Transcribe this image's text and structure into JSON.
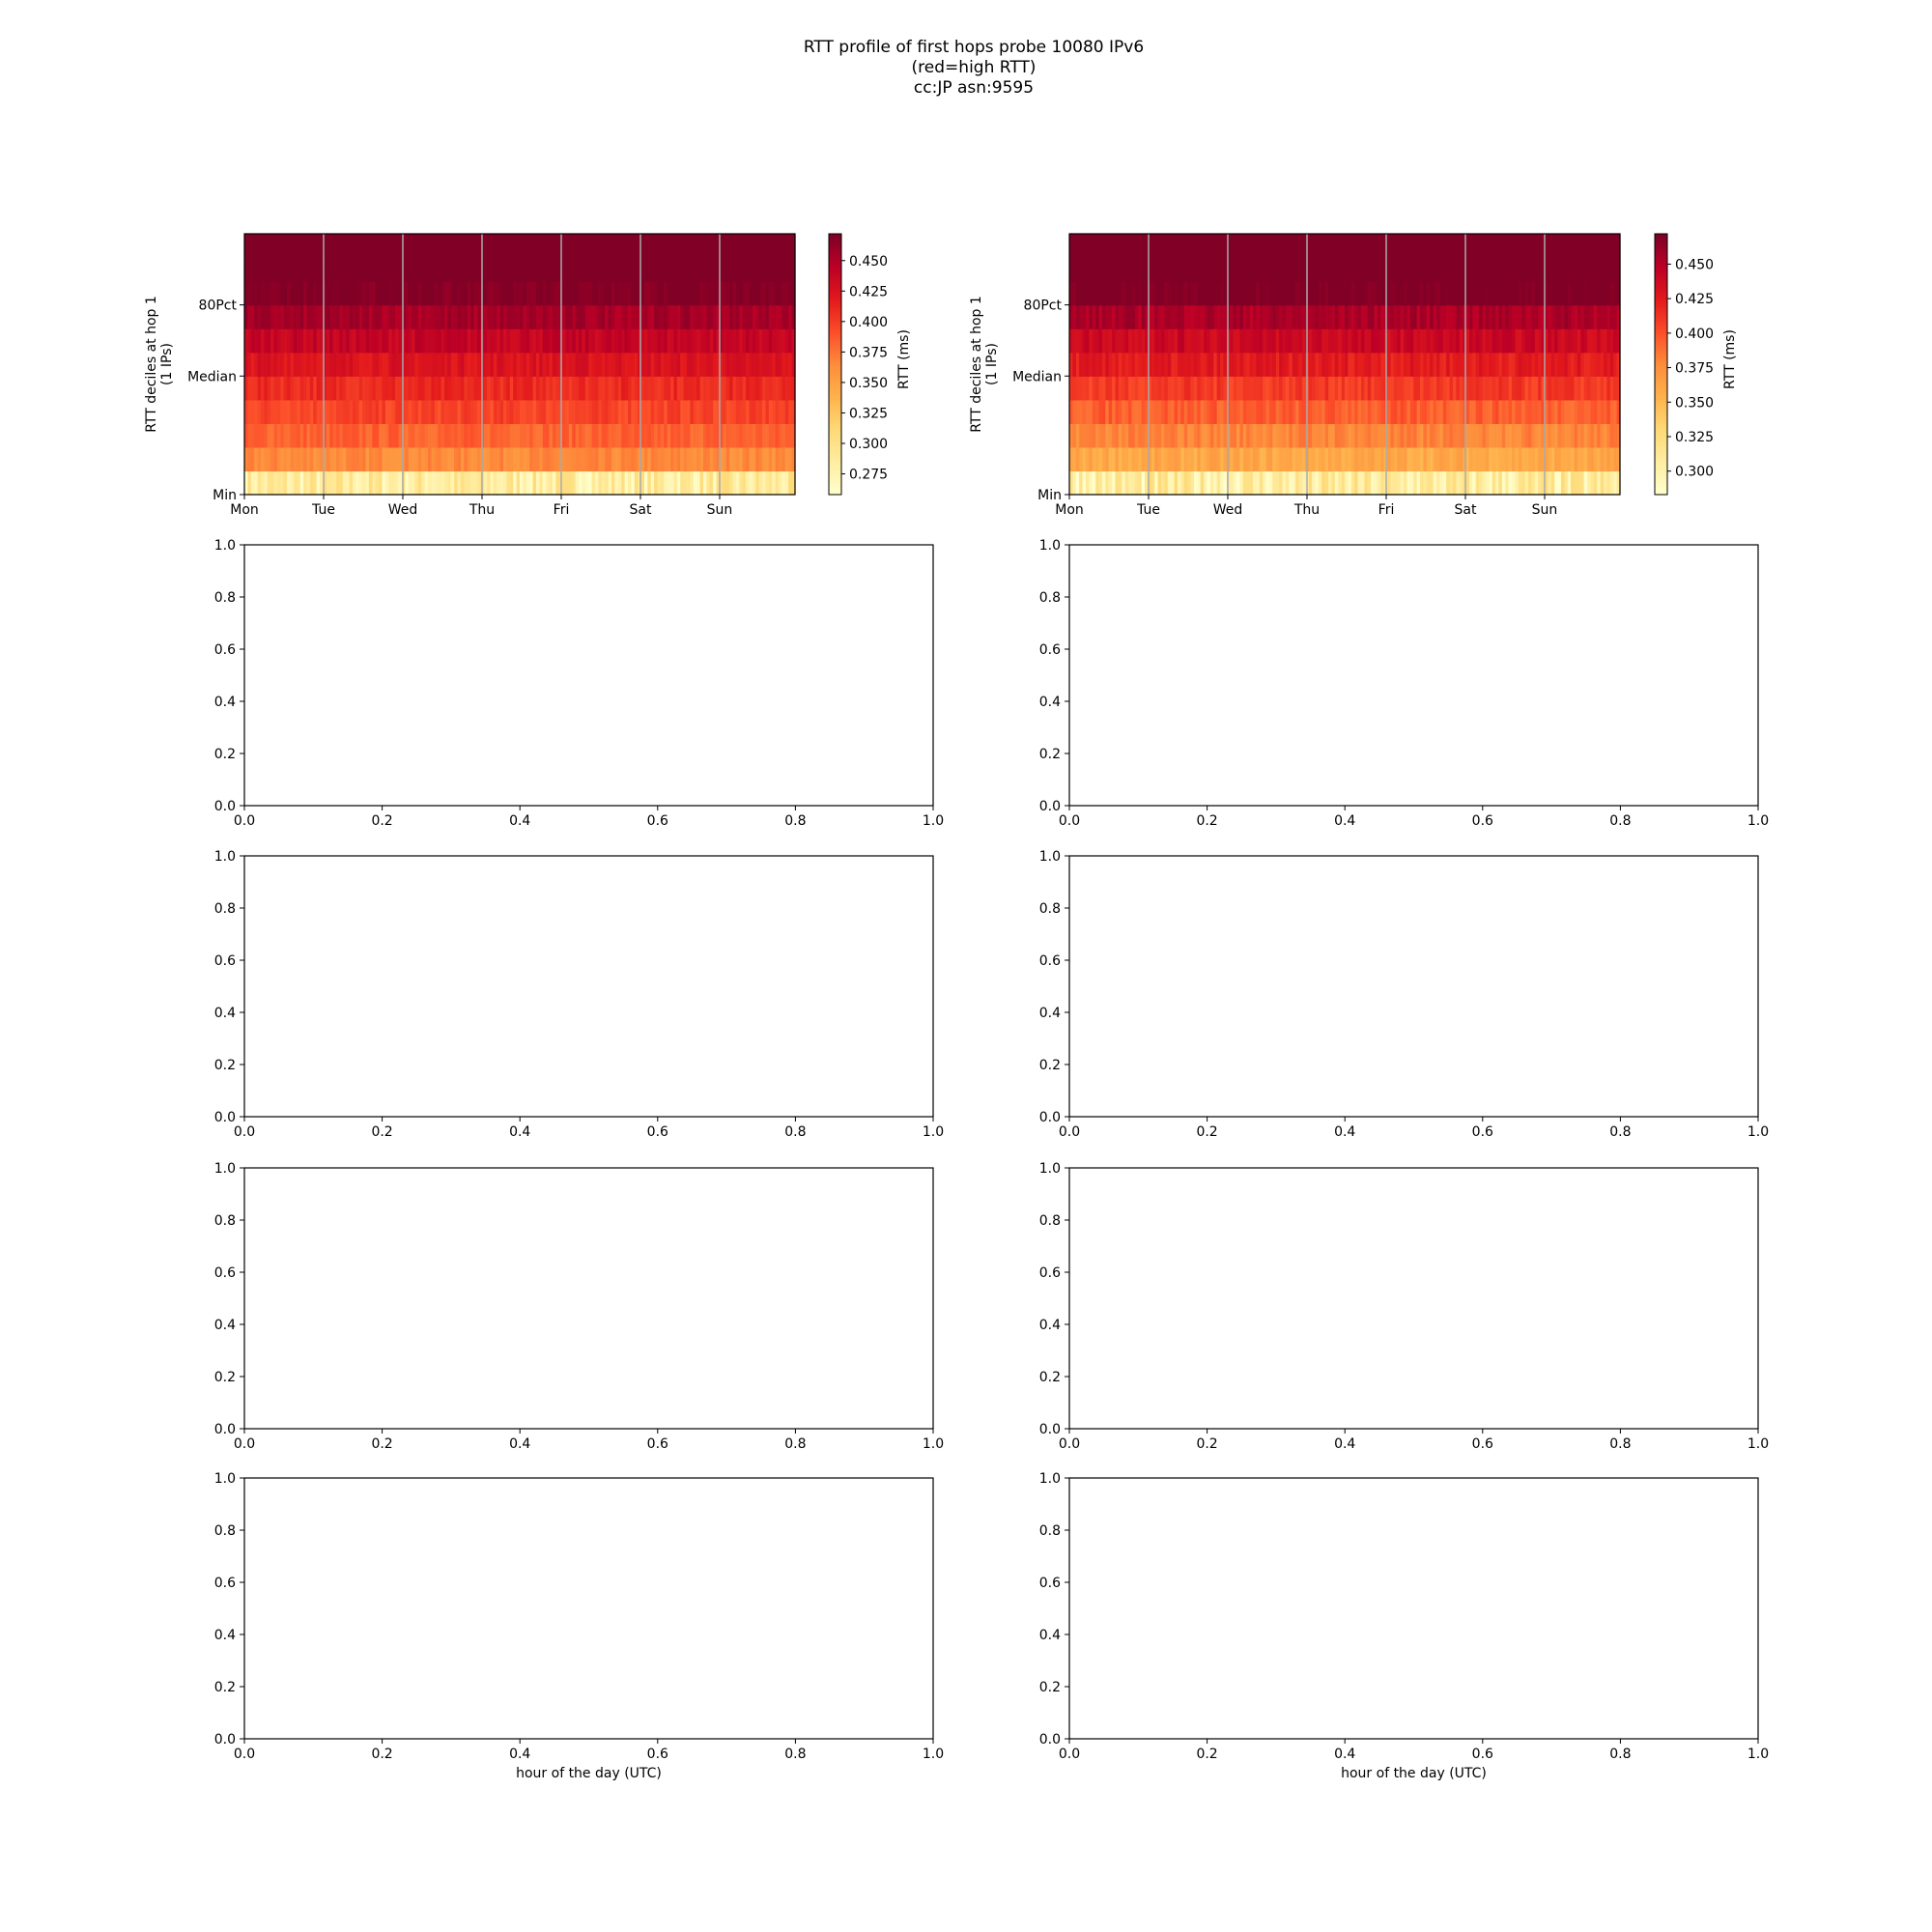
{
  "figure": {
    "title_lines": [
      "RTT profile of first hops probe 10080 IPv6",
      "(red=high RTT)",
      "cc:JP asn:9595"
    ]
  },
  "chart_data": [
    {
      "type": "heatmap",
      "panel": "top-left",
      "y_ticks": [
        "Min",
        "Median",
        "80Pct"
      ],
      "ylabel": [
        "RTT deciles at hop 1",
        "(1 IPs)"
      ],
      "x_ticks": [
        "Mon",
        "Tue",
        "Wed",
        "Thu",
        "Fri",
        "Sat",
        "Sun"
      ],
      "bands_bottom_to_top": [
        0.285,
        0.365,
        0.383,
        0.397,
        0.41,
        0.425,
        0.44,
        0.455,
        0.472,
        0.48,
        0.48
      ],
      "colorbar": {
        "label": "RTT (ms)",
        "ticks": [
          "0.275",
          "0.300",
          "0.325",
          "0.350",
          "0.375",
          "0.400",
          "0.425",
          "0.450"
        ],
        "range": [
          0.258,
          0.472
        ],
        "colormap": "YlOrRd"
      }
    },
    {
      "type": "heatmap",
      "panel": "top-right",
      "y_ticks": [
        "Min",
        "Median",
        "80Pct"
      ],
      "ylabel": [
        "RTT deciles at hop 1",
        "(1 IPs)"
      ],
      "x_ticks": [
        "Mon",
        "Tue",
        "Wed",
        "Thu",
        "Fri",
        "Sat",
        "Sun"
      ],
      "bands_bottom_to_top": [
        0.305,
        0.36,
        0.38,
        0.395,
        0.41,
        0.425,
        0.44,
        0.455,
        0.475,
        0.48,
        0.48
      ],
      "colorbar": {
        "label": "RTT (ms)",
        "ticks": [
          "0.300",
          "0.325",
          "0.350",
          "0.375",
          "0.400",
          "0.425",
          "0.450"
        ],
        "range": [
          0.283,
          0.472
        ],
        "colormap": "YlOrRd"
      }
    },
    {
      "type": "line",
      "panel": "row2-left",
      "xlim": [
        0,
        1
      ],
      "ylim": [
        0,
        1
      ],
      "x_ticks": [
        "0.0",
        "0.2",
        "0.4",
        "0.6",
        "0.8",
        "1.0"
      ],
      "y_ticks": [
        "0.0",
        "0.2",
        "0.4",
        "0.6",
        "0.8",
        "1.0"
      ],
      "xlabel": "",
      "series": []
    },
    {
      "type": "line",
      "panel": "row2-right",
      "xlim": [
        0,
        1
      ],
      "ylim": [
        0,
        1
      ],
      "x_ticks": [
        "0.0",
        "0.2",
        "0.4",
        "0.6",
        "0.8",
        "1.0"
      ],
      "y_ticks": [
        "0.0",
        "0.2",
        "0.4",
        "0.6",
        "0.8",
        "1.0"
      ],
      "xlabel": "",
      "series": []
    },
    {
      "type": "line",
      "panel": "row3-left",
      "xlim": [
        0,
        1
      ],
      "ylim": [
        0,
        1
      ],
      "x_ticks": [
        "0.0",
        "0.2",
        "0.4",
        "0.6",
        "0.8",
        "1.0"
      ],
      "y_ticks": [
        "0.0",
        "0.2",
        "0.4",
        "0.6",
        "0.8",
        "1.0"
      ],
      "xlabel": "",
      "series": []
    },
    {
      "type": "line",
      "panel": "row3-right",
      "xlim": [
        0,
        1
      ],
      "ylim": [
        0,
        1
      ],
      "x_ticks": [
        "0.0",
        "0.2",
        "0.4",
        "0.6",
        "0.8",
        "1.0"
      ],
      "y_ticks": [
        "0.0",
        "0.2",
        "0.4",
        "0.6",
        "0.8",
        "1.0"
      ],
      "xlabel": "",
      "series": []
    },
    {
      "type": "line",
      "panel": "row4-left",
      "xlim": [
        0,
        1
      ],
      "ylim": [
        0,
        1
      ],
      "x_ticks": [
        "0.0",
        "0.2",
        "0.4",
        "0.6",
        "0.8",
        "1.0"
      ],
      "y_ticks": [
        "0.0",
        "0.2",
        "0.4",
        "0.6",
        "0.8",
        "1.0"
      ],
      "xlabel": "",
      "series": []
    },
    {
      "type": "line",
      "panel": "row4-right",
      "xlim": [
        0,
        1
      ],
      "ylim": [
        0,
        1
      ],
      "x_ticks": [
        "0.0",
        "0.2",
        "0.4",
        "0.6",
        "0.8",
        "1.0"
      ],
      "y_ticks": [
        "0.0",
        "0.2",
        "0.4",
        "0.6",
        "0.8",
        "1.0"
      ],
      "xlabel": "",
      "series": []
    },
    {
      "type": "line",
      "panel": "row5-left",
      "xlim": [
        0,
        1
      ],
      "ylim": [
        0,
        1
      ],
      "x_ticks": [
        "0.0",
        "0.2",
        "0.4",
        "0.6",
        "0.8",
        "1.0"
      ],
      "y_ticks": [
        "0.0",
        "0.2",
        "0.4",
        "0.6",
        "0.8",
        "1.0"
      ],
      "xlabel": "hour of the day (UTC)",
      "series": []
    },
    {
      "type": "line",
      "panel": "row5-right",
      "xlim": [
        0,
        1
      ],
      "ylim": [
        0,
        1
      ],
      "x_ticks": [
        "0.0",
        "0.2",
        "0.4",
        "0.6",
        "0.8",
        "1.0"
      ],
      "y_ticks": [
        "0.0",
        "0.2",
        "0.4",
        "0.6",
        "0.8",
        "1.0"
      ],
      "xlabel": "hour of the day (UTC)",
      "series": []
    }
  ]
}
